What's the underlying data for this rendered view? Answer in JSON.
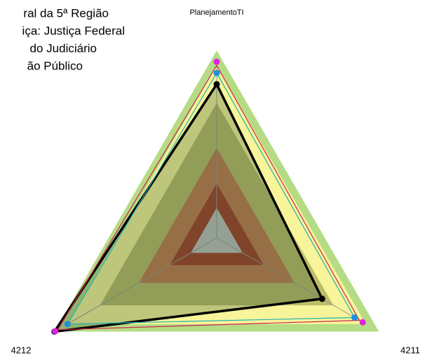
{
  "chart_data": {
    "type": "radar",
    "categories": [
      "PlanejamentoTI",
      "4211",
      "4212"
    ],
    "rlim": [
      0,
      100
    ],
    "bands": [
      {
        "color": "#b5dc84",
        "value": 100
      },
      {
        "color": "#f7f49a",
        "value": 92
      },
      {
        "color": "#bcbd6a",
        "value": 72
      },
      {
        "color": "#c27c52",
        "value": 48
      },
      {
        "color": "#a2412b",
        "value": 29
      },
      {
        "color": "#c0c0c0",
        "value": 16
      }
    ],
    "legend_labels": [
      "ral da 5ª Região",
      "iça: Justiça Federal",
      " do Judiciário",
      "ão Público"
    ],
    "series": [
      {
        "color": "#000000",
        "line_color": "#000000",
        "fill": "rgba(40,80,40,0.28)",
        "values": [
          82,
          65,
          100
        ]
      },
      {
        "color": "#1f8fe0",
        "line_color": "#20b0b0",
        "values": [
          88,
          85,
          92
        ]
      },
      {
        "color": "#e020e0",
        "line_color": null,
        "values": [
          94,
          90,
          99.6
        ]
      },
      {
        "color": null,
        "line_color": "#d02050",
        "values": [
          92,
          88,
          98
        ]
      }
    ]
  }
}
